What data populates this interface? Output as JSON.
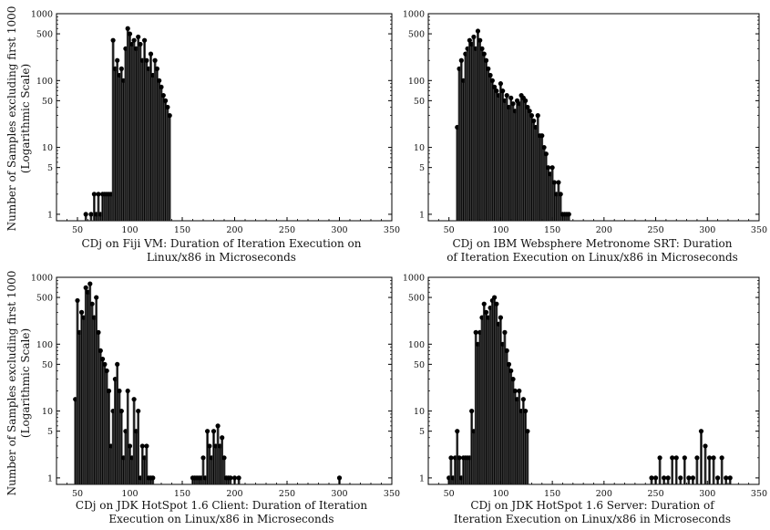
{
  "y_axis_label": {
    "line1": "Number of Samples excluding first 1000",
    "line2": "(Logarithmic Scale)"
  },
  "chart_data": [
    {
      "type": "bar",
      "scale_y": "log",
      "xlabel_line1": "CDj on Fiji VM: Duration of Iteration Execution on",
      "xlabel_line2": "Linux/x86 in Microseconds",
      "xlim": [
        30,
        350
      ],
      "ylim": [
        0.8,
        1000
      ],
      "xticks": [
        50,
        100,
        150,
        200,
        250,
        300,
        350
      ],
      "yticks": [
        1,
        5,
        10,
        50,
        100,
        500,
        1000
      ],
      "x": [
        58,
        63,
        66,
        68,
        70,
        72,
        74,
        76,
        78,
        80,
        82,
        84,
        86,
        88,
        90,
        92,
        94,
        96,
        98,
        100,
        102,
        104,
        106,
        108,
        110,
        112,
        114,
        116,
        118,
        120,
        122,
        124,
        126,
        128,
        130,
        132,
        134,
        136,
        138
      ],
      "values": [
        1,
        1,
        2,
        1,
        2,
        1,
        2,
        2,
        2,
        2,
        2,
        400,
        150,
        200,
        120,
        150,
        100,
        300,
        600,
        500,
        350,
        400,
        300,
        450,
        350,
        200,
        400,
        200,
        150,
        250,
        120,
        200,
        150,
        100,
        80,
        60,
        50,
        40,
        30
      ]
    },
    {
      "type": "bar",
      "scale_y": "log",
      "xlabel_line1": "CDj on IBM Websphere Metronome SRT: Duration",
      "xlabel_line2": "of Iteration Execution on Linux/x86 in Microseconds",
      "xlim": [
        30,
        350
      ],
      "ylim": [
        0.8,
        1000
      ],
      "xticks": [
        50,
        100,
        150,
        200,
        250,
        300,
        350
      ],
      "yticks": [
        1,
        5,
        10,
        50,
        100,
        500,
        1000
      ],
      "x": [
        58,
        60,
        62,
        64,
        66,
        68,
        70,
        72,
        74,
        76,
        78,
        80,
        82,
        84,
        86,
        88,
        90,
        92,
        94,
        96,
        98,
        100,
        102,
        104,
        106,
        108,
        110,
        112,
        114,
        116,
        118,
        120,
        122,
        124,
        126,
        128,
        130,
        132,
        134,
        136,
        138,
        140,
        142,
        144,
        146,
        148,
        150,
        152,
        154,
        156,
        158,
        160,
        162,
        164,
        166
      ],
      "values": [
        20,
        150,
        200,
        100,
        250,
        300,
        400,
        350,
        450,
        300,
        550,
        400,
        300,
        250,
        200,
        150,
        120,
        100,
        80,
        70,
        60,
        90,
        70,
        50,
        60,
        40,
        55,
        45,
        35,
        50,
        45,
        60,
        55,
        50,
        40,
        35,
        30,
        25,
        20,
        30,
        15,
        15,
        10,
        8,
        5,
        4,
        5,
        3,
        2,
        3,
        2,
        1,
        1,
        1,
        1
      ]
    },
    {
      "type": "bar",
      "scale_y": "log",
      "xlabel_line1": "CDj on JDK HotSpot 1.6 Client: Duration of Iteration",
      "xlabel_line2": "Execution on Linux/x86 in Microseconds",
      "xlim": [
        30,
        350
      ],
      "ylim": [
        0.8,
        1000
      ],
      "xticks": [
        50,
        100,
        150,
        200,
        250,
        300,
        350
      ],
      "yticks": [
        1,
        5,
        10,
        50,
        100,
        500,
        1000
      ],
      "x": [
        48,
        50,
        52,
        54,
        56,
        58,
        60,
        62,
        64,
        66,
        68,
        70,
        72,
        74,
        76,
        78,
        80,
        82,
        84,
        86,
        88,
        90,
        92,
        94,
        96,
        98,
        100,
        102,
        104,
        106,
        108,
        110,
        112,
        114,
        116,
        118,
        120,
        122,
        124,
        126,
        128,
        130,
        132,
        134,
        136,
        138,
        140,
        142,
        144,
        146,
        148,
        150,
        152,
        154,
        156,
        158,
        160,
        162,
        164,
        166,
        168,
        170,
        172,
        174,
        176,
        178,
        180,
        182,
        184,
        186,
        188,
        190,
        192,
        194,
        196,
        198,
        200,
        202,
        204,
        206,
        208,
        210,
        212,
        214,
        216,
        218,
        220,
        222,
        224,
        226,
        228,
        230,
        232,
        234,
        236,
        238,
        240,
        242,
        244,
        246,
        248,
        250,
        252,
        254,
        256,
        258,
        260,
        262,
        264,
        266,
        268,
        270,
        272,
        274,
        276,
        278,
        280,
        282,
        284,
        286,
        288,
        290,
        292,
        294,
        296,
        298,
        300
      ],
      "values": [
        15,
        450,
        150,
        300,
        250,
        700,
        600,
        800,
        400,
        250,
        500,
        150,
        80,
        60,
        50,
        40,
        20,
        3,
        10,
        30,
        50,
        20,
        10,
        2,
        5,
        20,
        3,
        2,
        15,
        5,
        10,
        1,
        3,
        2,
        3,
        1,
        1,
        1,
        0,
        0,
        0,
        0,
        0,
        0,
        0,
        0,
        0,
        0,
        0,
        0,
        0,
        0,
        0,
        0,
        0,
        0,
        1,
        1,
        1,
        1,
        1,
        2,
        1,
        5,
        3,
        2,
        5,
        3,
        6,
        3,
        4,
        2,
        1,
        1,
        1,
        0,
        1,
        0,
        1,
        0,
        0,
        0,
        0,
        0,
        0,
        0,
        0,
        0,
        0,
        0,
        0,
        0,
        0,
        0,
        0,
        0,
        0,
        0,
        0,
        0,
        0,
        0,
        0,
        0,
        0,
        0,
        0,
        0,
        0,
        0,
        0,
        0,
        0,
        0,
        0,
        0,
        0,
        0,
        0,
        0,
        0,
        0,
        0,
        0,
        0,
        0,
        1
      ]
    },
    {
      "type": "bar",
      "scale_y": "log",
      "xlabel_line1": "CDj on JDK HotSpot 1.6 Server: Duration of",
      "xlabel_line2": "Iteration Execution on Linux/x86 in Microseconds",
      "xlim": [
        30,
        350
      ],
      "ylim": [
        0.8,
        1000
      ],
      "xticks": [
        50,
        100,
        150,
        200,
        250,
        300,
        350
      ],
      "yticks": [
        1,
        5,
        10,
        50,
        100,
        500,
        1000
      ],
      "x": [
        50,
        52,
        54,
        56,
        58,
        60,
        62,
        64,
        66,
        68,
        70,
        72,
        74,
        76,
        78,
        80,
        82,
        84,
        86,
        88,
        90,
        92,
        94,
        96,
        98,
        100,
        102,
        104,
        106,
        108,
        110,
        112,
        114,
        116,
        118,
        120,
        122,
        124,
        126
      ],
      "values": [
        1,
        2,
        1,
        2,
        5,
        2,
        1,
        2,
        2,
        2,
        2,
        10,
        5,
        150,
        100,
        150,
        250,
        400,
        300,
        250,
        350,
        450,
        500,
        400,
        200,
        250,
        100,
        150,
        80,
        50,
        40,
        30,
        20,
        15,
        20,
        10,
        15,
        10,
        5
      ],
      "x2": [
        246,
        250,
        254,
        258,
        262,
        266,
        270,
        274,
        278,
        282,
        286,
        290,
        294,
        298,
        302,
        306,
        310,
        314,
        318,
        322
      ],
      "values2": [
        1,
        1,
        2,
        1,
        1,
        2,
        2,
        1,
        2,
        1,
        1,
        2,
        5,
        3,
        2,
        2,
        1,
        2,
        1,
        1
      ]
    }
  ]
}
